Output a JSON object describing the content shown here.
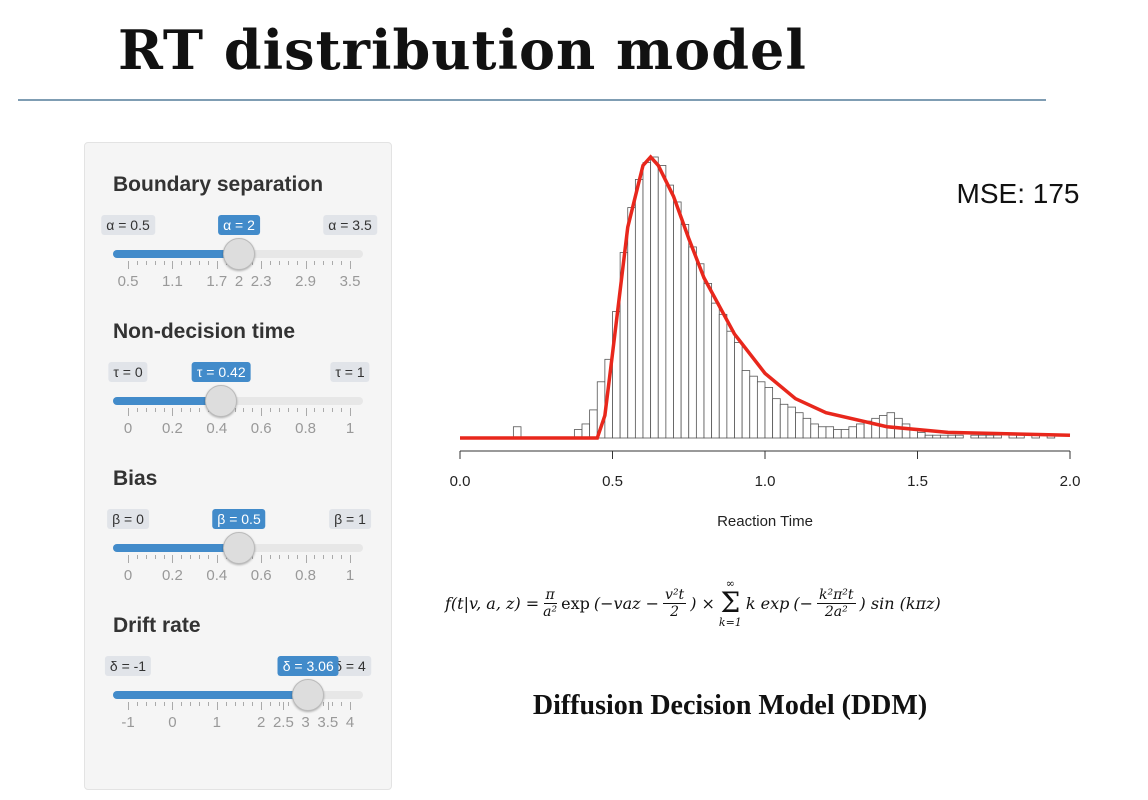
{
  "title": "RT distribution model",
  "sliders": [
    {
      "label": "Boundary separation",
      "min_label": "α = 0.5",
      "value_label": "α = 2",
      "max_label": "α = 3.5",
      "min": 0.5,
      "max": 3.5,
      "value": 2,
      "ticks": [
        0.5,
        1.1,
        1.7,
        2,
        2.3,
        2.9,
        3.5
      ]
    },
    {
      "label": "Non-decision time",
      "min_label": "τ = 0",
      "value_label": "τ = 0.42",
      "max_label": "τ = 1",
      "min": 0,
      "max": 1,
      "value": 0.42,
      "ticks": [
        0,
        0.2,
        0.4,
        0.6,
        0.8,
        1
      ]
    },
    {
      "label": "Bias",
      "min_label": "β = 0",
      "value_label": "β = 0.5",
      "max_label": "β = 1",
      "min": 0,
      "max": 1,
      "value": 0.5,
      "ticks": [
        0,
        0.2,
        0.4,
        0.6,
        0.8,
        1
      ]
    },
    {
      "label": "Drift rate",
      "min_label": "δ = -1",
      "value_label": "δ = 3.06",
      "max_label": "δ = 4",
      "min": -1,
      "max": 4,
      "value": 3.06,
      "ticks": [
        -1,
        0,
        1,
        2,
        2.5,
        3,
        3.5,
        4
      ]
    }
  ],
  "chart_data": {
    "type": "histogram",
    "xlabel": "Reaction Time",
    "annotation": "MSE: 175",
    "xlim": [
      0,
      2
    ],
    "ylim": [
      0,
      100
    ],
    "xticks": [
      {
        "value": 0,
        "label": "0.0"
      },
      {
        "value": 0.5,
        "label": "0.5"
      },
      {
        "value": 1,
        "label": "1.0"
      },
      {
        "value": 1.5,
        "label": "1.5"
      },
      {
        "value": 2,
        "label": "2.0"
      }
    ],
    "color": "#555555",
    "bins": [
      0,
      0.025,
      0.05,
      0.075,
      0.1,
      0.125,
      0.15,
      0.175,
      0.2,
      0.225,
      0.25,
      0.275,
      0.3,
      0.325,
      0.35,
      0.375,
      0.4,
      0.425,
      0.45,
      0.475,
      0.5,
      0.525,
      0.55,
      0.575,
      0.6,
      0.625,
      0.65,
      0.675,
      0.7,
      0.725,
      0.75,
      0.775,
      0.8,
      0.825,
      0.85,
      0.875,
      0.9,
      0.925,
      0.95,
      0.975,
      1,
      1.025,
      1.05,
      1.075,
      1.1,
      1.125,
      1.15,
      1.175,
      1.2,
      1.225,
      1.25,
      1.275,
      1.3,
      1.325,
      1.35,
      1.375,
      1.4,
      1.425,
      1.45,
      1.475,
      1.5,
      1.525,
      1.55,
      1.575,
      1.6,
      1.625,
      1.65,
      1.675,
      1.7,
      1.725,
      1.75,
      1.775,
      1.8,
      1.825,
      1.85,
      1.875,
      1.9,
      1.925,
      1.95,
      1.975,
      2
    ],
    "counts": [
      0,
      0,
      0,
      0,
      0,
      0,
      0,
      4,
      0,
      0,
      0,
      0,
      0,
      0,
      0,
      3,
      5,
      10,
      20,
      28,
      45,
      66,
      82,
      92,
      98,
      100,
      97,
      90,
      84,
      76,
      68,
      62,
      55,
      48,
      44,
      38,
      34,
      24,
      22,
      20,
      18,
      14,
      12,
      11,
      9,
      7,
      5,
      4,
      4,
      3,
      3,
      4,
      5,
      6,
      7,
      8,
      9,
      7,
      5,
      3,
      2,
      1,
      1,
      1,
      1,
      1,
      0,
      1,
      1,
      1,
      1,
      0,
      1,
      1,
      0,
      1,
      0,
      1,
      0,
      0
    ],
    "curve": {
      "color": "#e8271c",
      "x": [
        0,
        0.45,
        0.475,
        0.5,
        0.55,
        0.6,
        0.625,
        0.65,
        0.7,
        0.75,
        0.8,
        0.9,
        1.0,
        1.1,
        1.2,
        1.4,
        1.6,
        2.0
      ],
      "values": [
        0,
        0,
        8,
        30,
        75,
        97,
        100,
        97,
        86,
        71,
        57,
        37,
        23,
        14,
        9,
        4,
        2,
        1
      ]
    }
  },
  "formula": {
    "lhs": "f(t|v, a, z) =",
    "f1_num": "π",
    "f1_den": "a²",
    "exp1": "exp",
    "paren1": "(−vaz −",
    "f2_num": "v²t",
    "f2_den": "2",
    "close1": ") ×",
    "sum_top": "∞",
    "sum_sign": "Σ",
    "sum_bottom": "k=1",
    "term": "k exp",
    "paren2": "(−",
    "f3_num": "k²π²t",
    "f3_den": "2a²",
    "close2": ") sin (kπz)"
  },
  "caption": "Diffusion Decision Model (DDM)"
}
